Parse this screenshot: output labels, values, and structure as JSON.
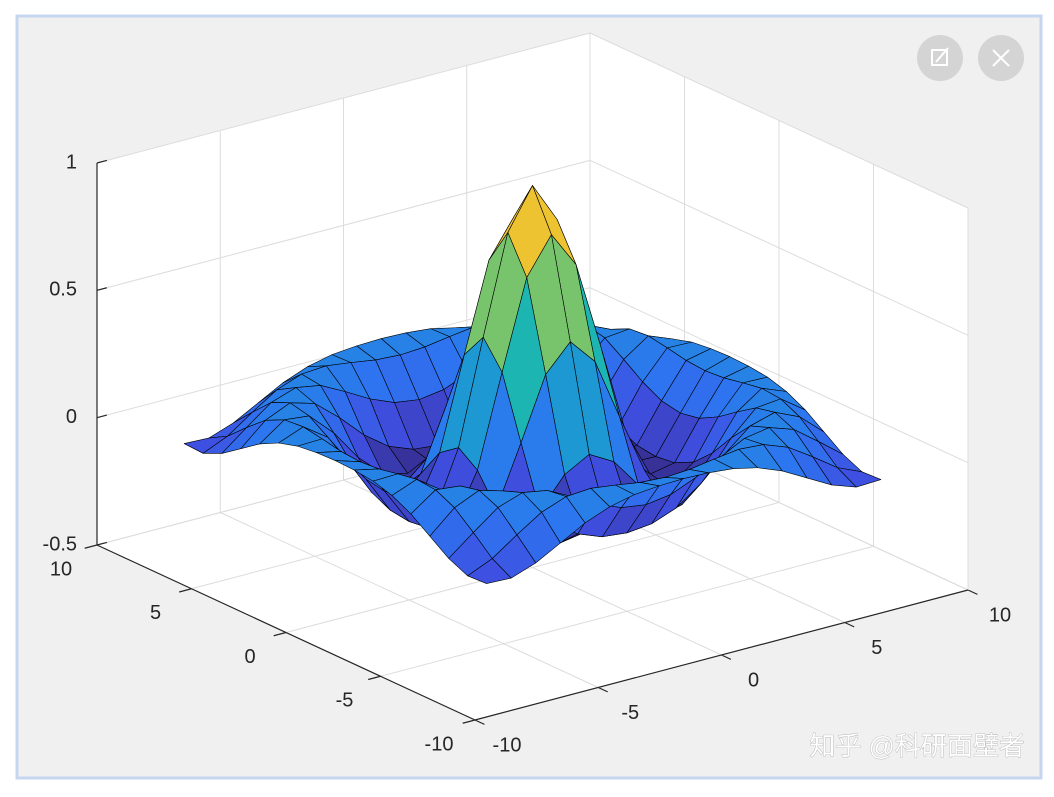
{
  "chart_data": {
    "type": "surface",
    "x": [
      -8,
      -7,
      -6,
      -5,
      -4,
      -3,
      -2,
      -1,
      0,
      1,
      2,
      3,
      4,
      5,
      6,
      7,
      8
    ],
    "y": [
      -8,
      -7,
      -6,
      -5,
      -4,
      -3,
      -2,
      -1,
      0,
      1,
      2,
      3,
      4,
      5,
      6,
      7,
      8
    ],
    "z": [
      [
        -0.084,
        -0.088,
        -0.054,
        -0.001,
        0.052,
        0.09,
        0.112,
        0.121,
        0.124,
        0.121,
        0.112,
        0.09,
        0.052,
        -0.001,
        -0.054,
        -0.088,
        -0.084
      ],
      [
        -0.088,
        -0.046,
        0.022,
        0.085,
        0.121,
        0.128,
        0.115,
        0.1,
        0.094,
        0.1,
        0.115,
        0.128,
        0.121,
        0.085,
        0.022,
        -0.046,
        -0.088
      ],
      [
        -0.054,
        0.022,
        0.095,
        0.128,
        0.111,
        0.061,
        0.007,
        -0.033,
        -0.047,
        -0.033,
        0.007,
        0.061,
        0.111,
        0.128,
        0.095,
        0.022,
        -0.054
      ],
      [
        -0.001,
        0.085,
        0.128,
        0.1,
        0.019,
        -0.075,
        -0.145,
        -0.182,
        -0.192,
        -0.182,
        -0.145,
        -0.075,
        0.019,
        0.1,
        0.128,
        0.085,
        -0.001
      ],
      [
        0.052,
        0.121,
        0.111,
        0.019,
        -0.104,
        -0.192,
        -0.217,
        -0.201,
        -0.189,
        -0.201,
        -0.217,
        -0.192,
        -0.104,
        0.019,
        0.111,
        0.121,
        0.052
      ],
      [
        0.09,
        0.128,
        0.061,
        -0.075,
        -0.192,
        -0.21,
        -0.124,
        -0.007,
        0.047,
        -0.007,
        -0.124,
        -0.21,
        -0.192,
        -0.075,
        0.061,
        0.128,
        0.09
      ],
      [
        0.112,
        0.115,
        0.007,
        -0.145,
        -0.217,
        -0.124,
        0.109,
        0.352,
        0.455,
        0.352,
        0.109,
        -0.124,
        -0.217,
        -0.145,
        0.007,
        0.115,
        0.112
      ],
      [
        0.121,
        0.1,
        -0.033,
        -0.182,
        -0.201,
        -0.007,
        0.352,
        0.698,
        0.841,
        0.698,
        0.352,
        -0.007,
        -0.201,
        -0.182,
        -0.033,
        0.1,
        0.121
      ],
      [
        0.124,
        0.094,
        -0.047,
        -0.192,
        -0.189,
        0.047,
        0.455,
        0.841,
        1,
        0.841,
        0.455,
        0.047,
        -0.189,
        -0.192,
        -0.047,
        0.094,
        0.124
      ],
      [
        0.121,
        0.1,
        -0.033,
        -0.182,
        -0.201,
        -0.007,
        0.352,
        0.698,
        0.841,
        0.698,
        0.352,
        -0.007,
        -0.201,
        -0.182,
        -0.033,
        0.1,
        0.121
      ],
      [
        0.112,
        0.115,
        0.007,
        -0.145,
        -0.217,
        -0.124,
        0.109,
        0.352,
        0.455,
        0.352,
        0.109,
        -0.124,
        -0.217,
        -0.145,
        0.007,
        0.115,
        0.112
      ],
      [
        0.09,
        0.128,
        0.061,
        -0.075,
        -0.192,
        -0.21,
        -0.124,
        -0.007,
        0.047,
        -0.007,
        -0.124,
        -0.21,
        -0.192,
        -0.075,
        0.061,
        0.128,
        0.09
      ],
      [
        0.052,
        0.121,
        0.111,
        0.019,
        -0.104,
        -0.192,
        -0.217,
        -0.201,
        -0.189,
        -0.201,
        -0.217,
        -0.192,
        -0.104,
        0.019,
        0.111,
        0.121,
        0.052
      ],
      [
        -0.001,
        0.085,
        0.128,
        0.1,
        0.019,
        -0.075,
        -0.145,
        -0.182,
        -0.192,
        -0.182,
        -0.145,
        -0.075,
        0.019,
        0.1,
        0.128,
        0.085,
        -0.001
      ],
      [
        -0.054,
        0.022,
        0.095,
        0.128,
        0.111,
        0.061,
        0.007,
        -0.033,
        -0.047,
        -0.033,
        0.007,
        0.061,
        0.111,
        0.128,
        0.095,
        0.022,
        -0.054
      ],
      [
        -0.088,
        -0.046,
        0.022,
        0.085,
        0.121,
        0.128,
        0.115,
        0.1,
        0.094,
        0.1,
        0.115,
        0.128,
        0.121,
        0.085,
        0.022,
        -0.046,
        -0.088
      ],
      [
        -0.084,
        -0.088,
        -0.054,
        -0.001,
        0.052,
        0.09,
        0.112,
        0.121,
        0.124,
        0.121,
        0.112,
        0.09,
        0.052,
        -0.001,
        -0.054,
        -0.088,
        -0.084
      ]
    ],
    "xlim": [
      -10,
      10
    ],
    "ylim": [
      -10,
      10
    ],
    "zlim": [
      -0.5,
      1
    ],
    "xticks": [
      -10,
      -5,
      0,
      5,
      10
    ],
    "yticks": [
      -10,
      -5,
      0,
      5,
      10
    ],
    "zticks": [
      -0.5,
      0,
      0.5,
      1
    ],
    "grid": true,
    "colormap": [
      "#352a87",
      "#3f4fe0",
      "#2d75f1",
      "#1f93d6",
      "#11aec0",
      "#2fbf9a",
      "#7cc46a",
      "#c4bc3b",
      "#f5c431",
      "#f9fb0e"
    ]
  },
  "watermark": "知乎 @科研面壁者"
}
